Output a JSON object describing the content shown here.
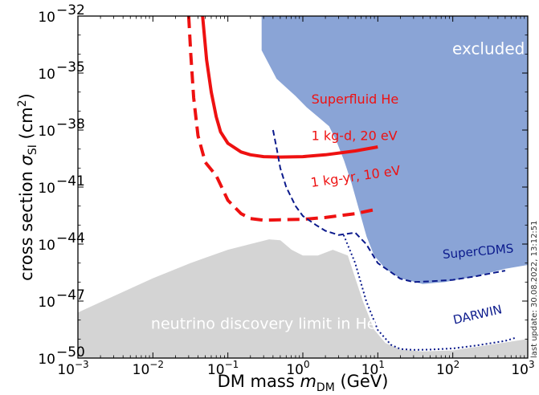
{
  "chart_data": {
    "type": "area",
    "xscale": "log",
    "yscale": "log",
    "xlim": [
      0.001,
      1000
    ],
    "ylim": [
      1e-50,
      1e-32
    ],
    "x_ticks": [
      {
        "value": 0.001,
        "base": "10",
        "exp": "−3"
      },
      {
        "value": 0.01,
        "base": "10",
        "exp": "−2"
      },
      {
        "value": 0.1,
        "base": "10",
        "exp": "−1"
      },
      {
        "value": 1,
        "base": "10",
        "exp": "0"
      },
      {
        "value": 10,
        "base": "10",
        "exp": "1"
      },
      {
        "value": 100,
        "base": "10",
        "exp": "2"
      },
      {
        "value": 1000,
        "base": "10",
        "exp": "3"
      }
    ],
    "y_ticks": [
      {
        "value": 1e-50,
        "base": "10",
        "exp": "−50"
      },
      {
        "value": 1e-47,
        "base": "10",
        "exp": "−47"
      },
      {
        "value": 1e-44,
        "base": "10",
        "exp": "−44"
      },
      {
        "value": 1e-41,
        "base": "10",
        "exp": "−41"
      },
      {
        "value": 1e-38,
        "base": "10",
        "exp": "−38"
      },
      {
        "value": 1e-35,
        "base": "10",
        "exp": "−35"
      },
      {
        "value": 1e-32,
        "base": "10",
        "exp": "−32"
      }
    ],
    "xlabel": {
      "prefix": "DM mass ",
      "var": "m",
      "sub": "DM",
      "suffix": " (GeV)"
    },
    "ylabel": {
      "prefix": "cross section ",
      "var": "σ",
      "sub": "SI",
      "unit_open": " (cm",
      "unit_sup": "2",
      "unit_close": ")"
    },
    "colors": {
      "excluded": "#8aa4d6",
      "neutrino": "#d4d4d4",
      "superfluid": "#ee1111",
      "projection": "#0b1a8c",
      "background": "#ffffff"
    },
    "regions": [
      {
        "name": "excluded",
        "color": "#8aa4d6",
        "log_points": [
          [
            -0.55,
            -32
          ],
          [
            -0.55,
            -33.8
          ],
          [
            -0.35,
            -35.3
          ],
          [
            -0.1,
            -36.2
          ],
          [
            0.05,
            -36.8
          ],
          [
            0.2,
            -37.3
          ],
          [
            0.35,
            -37.8
          ],
          [
            0.45,
            -38.6
          ],
          [
            0.55,
            -39.6
          ],
          [
            0.65,
            -40.8
          ],
          [
            0.75,
            -42.2
          ],
          [
            0.85,
            -43.6
          ],
          [
            0.95,
            -44.6
          ],
          [
            1.1,
            -45.3
          ],
          [
            1.3,
            -45.8
          ],
          [
            1.6,
            -46.1
          ],
          [
            1.9,
            -46.0
          ],
          [
            2.3,
            -45.7
          ],
          [
            2.7,
            -45.3
          ],
          [
            3.0,
            -45.1
          ],
          [
            3.0,
            -32
          ]
        ]
      },
      {
        "name": "neutrino_floor",
        "color": "#d4d4d4",
        "log_points": [
          [
            -3,
            -50
          ],
          [
            -3,
            -47.6
          ],
          [
            -2.5,
            -46.7
          ],
          [
            -2.0,
            -45.8
          ],
          [
            -1.5,
            -45.0
          ],
          [
            -1.0,
            -44.3
          ],
          [
            -0.7,
            -44.0
          ],
          [
            -0.45,
            -43.75
          ],
          [
            -0.3,
            -43.8
          ],
          [
            -0.15,
            -44.3
          ],
          [
            0.0,
            -44.6
          ],
          [
            0.2,
            -44.6
          ],
          [
            0.4,
            -44.3
          ],
          [
            0.6,
            -44.6
          ],
          [
            0.8,
            -47.0
          ],
          [
            0.95,
            -48.5
          ],
          [
            1.1,
            -49.2
          ],
          [
            1.3,
            -49.55
          ],
          [
            1.6,
            -49.65
          ],
          [
            2.0,
            -49.6
          ],
          [
            2.5,
            -49.3
          ],
          [
            3.0,
            -49.0
          ],
          [
            3.0,
            -50
          ]
        ]
      }
    ],
    "series": [
      {
        "name": "Superfluid He 1 kg-d, 20 eV",
        "style": "solid",
        "color": "#ee1111",
        "x": [
          0.046,
          0.052,
          0.06,
          0.07,
          0.08,
          0.1,
          0.15,
          0.2,
          0.3,
          0.5,
          1,
          2,
          5,
          10
        ],
        "y": [
          1e-32,
          5e-35,
          1e-36,
          5e-38,
          8e-39,
          2e-39,
          7e-40,
          5e-40,
          4e-40,
          3.8e-40,
          4e-40,
          5e-40,
          8e-40,
          1.3e-39
        ]
      },
      {
        "name": "Superfluid He 1 kg-yr, 10 eV",
        "style": "dashed",
        "color": "#ee1111",
        "x": [
          0.03,
          0.032,
          0.035,
          0.04,
          0.05,
          0.07,
          0.1,
          0.15,
          0.2,
          0.3,
          0.5,
          1,
          2,
          5,
          10
        ],
        "y": [
          1e-32,
          1e-34,
          5e-37,
          5e-39,
          2e-40,
          4e-41,
          2e-42,
          4e-43,
          2.2e-43,
          1.8e-43,
          1.9e-43,
          2e-43,
          2.5e-43,
          4e-43,
          7e-43
        ]
      },
      {
        "name": "SuperCDMS",
        "style": "dashed",
        "color": "#0b1a8c",
        "x": [
          0.4,
          0.45,
          0.5,
          0.6,
          0.8,
          1,
          1.5,
          2,
          3,
          5,
          7,
          10,
          20,
          30,
          50,
          100,
          200,
          500
        ],
        "y": [
          1e-38,
          1e-39,
          1e-40,
          1e-41,
          1e-42,
          3e-43,
          1e-43,
          5e-44,
          3e-44,
          4e-44,
          1e-44,
          1e-45,
          1.5e-46,
          1e-46,
          1.1e-46,
          1.3e-46,
          2e-46,
          4e-46
        ]
      },
      {
        "name": "DARWIN",
        "style": "dotted",
        "color": "#0b1a8c",
        "x": [
          3.5,
          5,
          7,
          10,
          15,
          20,
          30,
          50,
          100,
          200,
          500,
          700
        ],
        "y": [
          3e-44,
          1e-45,
          1e-47,
          3e-49,
          5e-50,
          3e-50,
          2.7e-50,
          2.8e-50,
          3.2e-50,
          4.5e-50,
          8e-50,
          1.2e-49
        ]
      }
    ],
    "annotations": [
      {
        "text": "excluded",
        "x": 300,
        "y": 1e-34,
        "color": "#ffffff",
        "size": 20,
        "rotate": 0,
        "anchor": "middle"
      },
      {
        "text": "Superfluid He",
        "x": 1.3,
        "y": 2.5e-37,
        "color": "#ee1111",
        "size": 16,
        "rotate": 0,
        "anchor": "start"
      },
      {
        "text": "1 kg-d, 20 eV",
        "x": 1.3,
        "y": 3e-39,
        "color": "#ee1111",
        "size": 16,
        "rotate": 0,
        "anchor": "start"
      },
      {
        "text": "1 kg-yr, 10 eV",
        "x": 1.3,
        "y": 1e-41,
        "color": "#ee1111",
        "size": 16,
        "rotate": -8,
        "anchor": "start"
      },
      {
        "text": "SuperCDMS",
        "x": 220,
        "y": 2.5e-45,
        "color": "#0b1a8c",
        "size": 15,
        "rotate": -5,
        "anchor": "middle"
      },
      {
        "text": "DARWIN",
        "x": 220,
        "y": 1.2e-48,
        "color": "#0b1a8c",
        "size": 15,
        "rotate": -13,
        "anchor": "middle"
      },
      {
        "text": "neutrino discovery limit in He",
        "x": 0.3,
        "y": 3.5e-49,
        "color": "#ffffff",
        "size": 19,
        "rotate": 0,
        "anchor": "middle"
      }
    ],
    "timestamp": "last update: 30.08.2022, 13:12:51"
  }
}
